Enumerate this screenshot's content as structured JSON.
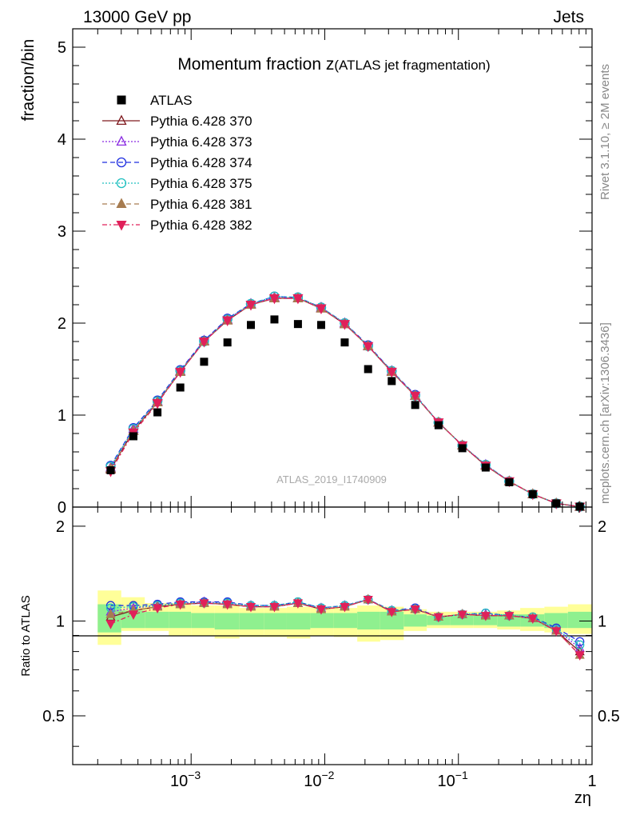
{
  "header": {
    "left": "13000 GeV pp",
    "right": "Jets"
  },
  "side_labels": {
    "rivet": "Rivet 3.1.10, ≥ 2M events",
    "mcplots": "mcplots.cern.ch [arXiv:1306.3436]"
  },
  "watermark": "ATLAS_2019_I1740909",
  "chart_data": [
    {
      "type": "scatter",
      "title_main": "Momentum fraction ",
      "title_var": "z",
      "title_sub": "(ATLAS jet fragmentation)",
      "ylabel": "fraction/bin",
      "xscale": "log",
      "xlim": [
        0.00013,
        1.0
      ],
      "ylim": [
        0,
        5.2
      ],
      "yticks": [
        "0",
        "1",
        "2",
        "3",
        "4",
        "5"
      ],
      "x": [
        0.00025,
        0.00037,
        0.00056,
        0.00083,
        0.00125,
        0.00187,
        0.0028,
        0.0042,
        0.0063,
        0.0094,
        0.0141,
        0.0211,
        0.0317,
        0.0475,
        0.071,
        0.107,
        0.16,
        0.24,
        0.36,
        0.54,
        0.81
      ],
      "series": [
        {
          "name": "ATLAS",
          "color": "#000000",
          "marker": "square",
          "dash": "none",
          "values": [
            0.4,
            0.77,
            1.03,
            1.3,
            1.58,
            1.79,
            1.98,
            2.04,
            1.99,
            1.98,
            1.79,
            1.5,
            1.37,
            1.11,
            0.89,
            0.64,
            0.43,
            0.27,
            0.14,
            0.04,
            0.005
          ]
        },
        {
          "name": "Pythia 6.428 370",
          "color": "#7f1a1f",
          "marker": "triangle-open",
          "dash": "none",
          "values": [
            0.41,
            0.83,
            1.14,
            1.47,
            1.8,
            2.03,
            2.2,
            2.27,
            2.27,
            2.16,
            1.99,
            1.75,
            1.47,
            1.21,
            0.92,
            0.67,
            0.45,
            0.28,
            0.14,
            0.04,
            0.004
          ]
        },
        {
          "name": "Pythia 6.428 373",
          "color": "#8a2be2",
          "marker": "triangle-open",
          "dash": "2,2",
          "values": [
            0.43,
            0.85,
            1.15,
            1.48,
            1.81,
            2.04,
            2.21,
            2.28,
            2.27,
            2.17,
            2.0,
            1.75,
            1.48,
            1.21,
            0.92,
            0.67,
            0.46,
            0.28,
            0.14,
            0.04,
            0.004
          ]
        },
        {
          "name": "Pythia 6.428 374",
          "color": "#1f2fe0",
          "marker": "circle-open",
          "dash": "6,4",
          "values": [
            0.45,
            0.86,
            1.16,
            1.49,
            1.81,
            2.05,
            2.21,
            2.29,
            2.28,
            2.17,
            2.0,
            1.76,
            1.48,
            1.22,
            0.92,
            0.67,
            0.46,
            0.28,
            0.14,
            0.04,
            0.004
          ]
        },
        {
          "name": "Pythia 6.428 375",
          "color": "#20c0c0",
          "marker": "circle-open",
          "dash": "2,2",
          "values": [
            0.44,
            0.85,
            1.15,
            1.48,
            1.8,
            2.04,
            2.21,
            2.29,
            2.28,
            2.17,
            2.0,
            1.75,
            1.48,
            1.21,
            0.92,
            0.67,
            0.46,
            0.28,
            0.14,
            0.04,
            0.004
          ]
        },
        {
          "name": "Pythia 6.428 381",
          "color": "#a77c50",
          "marker": "triangle-filled",
          "dash": "6,4",
          "values": [
            0.42,
            0.83,
            1.14,
            1.47,
            1.8,
            2.03,
            2.2,
            2.27,
            2.27,
            2.16,
            1.99,
            1.75,
            1.47,
            1.21,
            0.92,
            0.67,
            0.45,
            0.28,
            0.14,
            0.04,
            0.004
          ]
        },
        {
          "name": "Pythia 6.428 382",
          "color": "#e0205a",
          "marker": "triangledown-filled",
          "dash": "6,3,2,3",
          "values": [
            0.39,
            0.81,
            1.13,
            1.47,
            1.8,
            2.03,
            2.2,
            2.27,
            2.27,
            2.16,
            1.99,
            1.75,
            1.47,
            1.21,
            0.92,
            0.67,
            0.45,
            0.28,
            0.14,
            0.04,
            0.004
          ]
        }
      ]
    },
    {
      "type": "scatter",
      "ylabel": "Ratio to ATLAS",
      "xlabel": "zη",
      "xscale": "log",
      "xlim": [
        0.00013,
        1.0
      ],
      "ylim": [
        0.35,
        2.3
      ],
      "yticks": [
        "0.5",
        "1",
        "2"
      ],
      "ytick_values": [
        0.5,
        1,
        2
      ],
      "xticks": [
        "10",
        "10",
        "10",
        "1"
      ],
      "xtick_exps": [
        "−3",
        "−2",
        "−1",
        ""
      ],
      "xtick_values": [
        0.001,
        0.01,
        0.1,
        1
      ],
      "band_edges": [
        0.0002,
        0.0003,
        0.00045,
        0.00068,
        0.001,
        0.0015,
        0.0023,
        0.0035,
        0.0052,
        0.0078,
        0.0117,
        0.0175,
        0.026,
        0.039,
        0.058,
        0.087,
        0.13,
        0.195,
        0.29,
        0.44,
        0.66,
        1.0
      ],
      "band_yellow_lo": [
        0.84,
        0.93,
        0.93,
        0.9,
        0.9,
        0.88,
        0.89,
        0.89,
        0.88,
        0.9,
        0.89,
        0.86,
        0.87,
        0.93,
        0.95,
        0.95,
        0.95,
        0.94,
        0.93,
        0.92,
        0.91
      ],
      "band_yellow_hi": [
        1.25,
        1.19,
        1.14,
        1.14,
        1.12,
        1.12,
        1.1,
        1.1,
        1.11,
        1.1,
        1.1,
        1.12,
        1.11,
        1.09,
        1.07,
        1.07,
        1.07,
        1.08,
        1.1,
        1.11,
        1.13
      ],
      "band_green_lo": [
        0.92,
        0.95,
        0.95,
        0.95,
        0.95,
        0.94,
        0.94,
        0.94,
        0.94,
        0.95,
        0.95,
        0.94,
        0.94,
        0.96,
        0.97,
        0.97,
        0.97,
        0.96,
        0.96,
        0.95,
        0.95
      ],
      "band_green_hi": [
        1.13,
        1.08,
        1.07,
        1.07,
        1.06,
        1.06,
        1.06,
        1.06,
        1.06,
        1.06,
        1.06,
        1.07,
        1.07,
        1.05,
        1.04,
        1.04,
        1.04,
        1.05,
        1.05,
        1.06,
        1.07
      ],
      "series": [
        {
          "name": "Pythia 6.428 370",
          "values": [
            1.03,
            1.08,
            1.11,
            1.13,
            1.14,
            1.13,
            1.11,
            1.11,
            1.14,
            1.09,
            1.11,
            1.17,
            1.07,
            1.09,
            1.03,
            1.05,
            1.04,
            1.04,
            1.02,
            0.93,
            0.8
          ]
        },
        {
          "name": "Pythia 6.428 373",
          "values": [
            1.07,
            1.1,
            1.12,
            1.14,
            1.15,
            1.14,
            1.12,
            1.12,
            1.14,
            1.1,
            1.12,
            1.17,
            1.08,
            1.09,
            1.03,
            1.05,
            1.05,
            1.04,
            1.02,
            0.94,
            0.82
          ]
        },
        {
          "name": "Pythia 6.428 374",
          "values": [
            1.12,
            1.12,
            1.13,
            1.15,
            1.15,
            1.15,
            1.12,
            1.12,
            1.15,
            1.1,
            1.12,
            1.17,
            1.08,
            1.1,
            1.03,
            1.05,
            1.06,
            1.04,
            1.03,
            0.95,
            0.86
          ]
        },
        {
          "name": "Pythia 6.428 375",
          "values": [
            1.1,
            1.11,
            1.12,
            1.14,
            1.14,
            1.14,
            1.12,
            1.12,
            1.15,
            1.1,
            1.12,
            1.17,
            1.08,
            1.09,
            1.03,
            1.05,
            1.06,
            1.04,
            1.03,
            0.94,
            0.84
          ]
        },
        {
          "name": "Pythia 6.428 381",
          "values": [
            1.05,
            1.08,
            1.11,
            1.13,
            1.14,
            1.13,
            1.11,
            1.11,
            1.14,
            1.09,
            1.11,
            1.17,
            1.07,
            1.09,
            1.03,
            1.05,
            1.04,
            1.04,
            1.02,
            0.93,
            0.78
          ]
        },
        {
          "name": "Pythia 6.428 382",
          "values": [
            0.98,
            1.05,
            1.1,
            1.13,
            1.14,
            1.13,
            1.11,
            1.11,
            1.14,
            1.09,
            1.11,
            1.17,
            1.07,
            1.09,
            1.03,
            1.05,
            1.04,
            1.04,
            1.02,
            0.93,
            0.78
          ]
        }
      ]
    }
  ]
}
